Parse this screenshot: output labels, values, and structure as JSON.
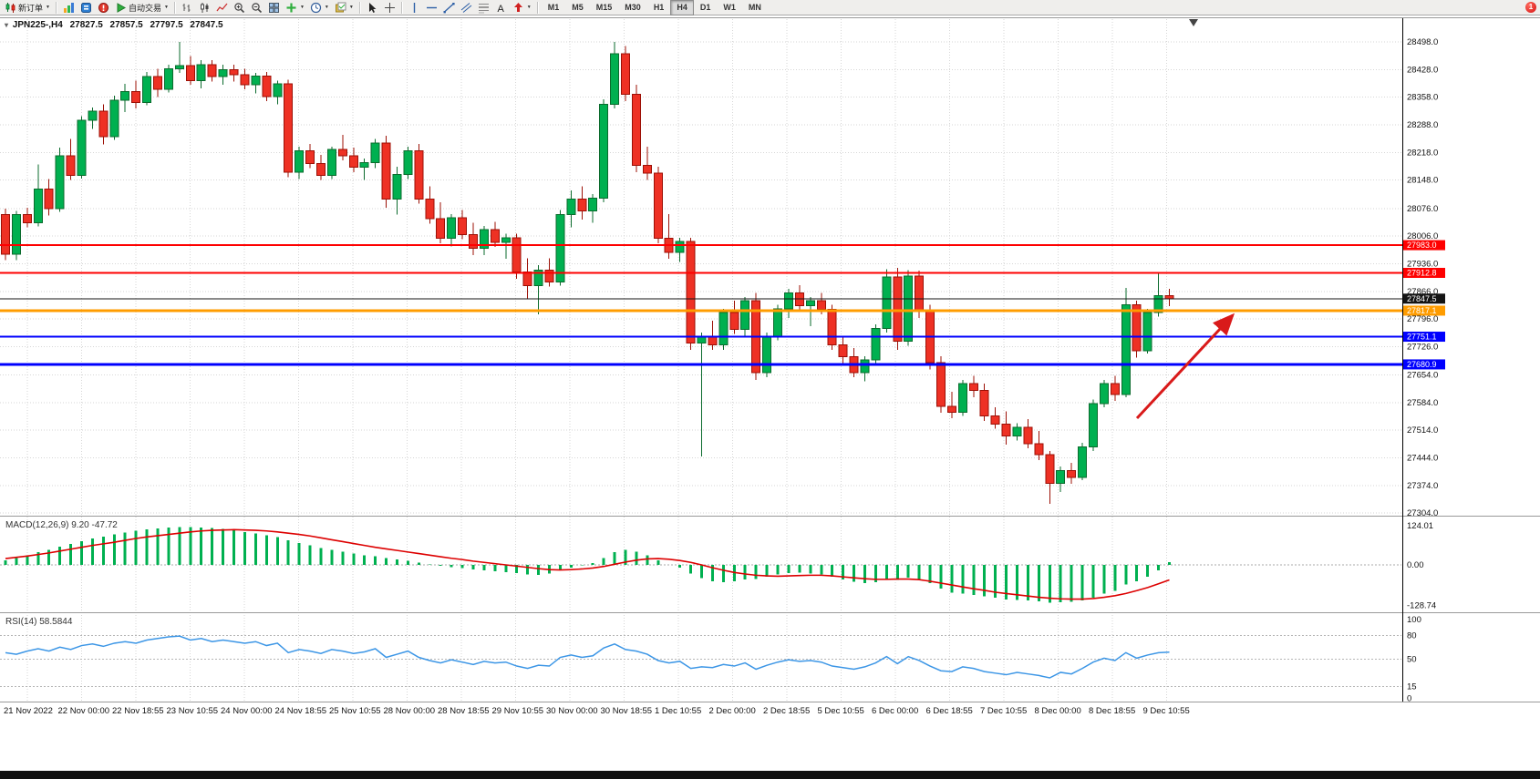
{
  "colors": {
    "up_fill": "#00b050",
    "up_stroke": "#0b6b2d",
    "down_fill": "#ee3124",
    "down_stroke": "#9c1006",
    "macd_hist": "#00b050",
    "macd_signal": "#dd0000",
    "rsi_line": "#3c96e6",
    "grid": "#d6d6d6",
    "axis_text": "#111111",
    "arrow": "#d91a1a"
  },
  "icons": {
    "one_click": "▾",
    "caret_down": "▼"
  },
  "toolbar": {
    "groups": [
      [
        {
          "name": "new-order-button",
          "icon": "candles",
          "label": "新订单",
          "caret": true
        }
      ],
      [
        {
          "name": "charts-button",
          "icon": "chart"
        },
        {
          "name": "market-watch-button",
          "icon": "bluebox"
        },
        {
          "name": "alerts-button",
          "icon": "redbox"
        },
        {
          "name": "auto-trading-button",
          "icon": "play",
          "label": "自动交易",
          "caret": true
        }
      ],
      [
        {
          "name": "bar-chart-button",
          "icon": "bars"
        },
        {
          "name": "candlestick-chart-button",
          "icon": "candles2"
        },
        {
          "name": "line-chart-button",
          "icon": "linechart"
        },
        {
          "name": "zoom-in-button",
          "icon": "zoomin"
        },
        {
          "name": "zoom-out-button",
          "icon": "zoomout"
        },
        {
          "name": "tile-windows-button",
          "icon": "tile"
        },
        {
          "name": "indicators-button",
          "icon": "plus",
          "caret": true
        },
        {
          "name": "periods-button",
          "icon": "clock",
          "caret": true
        },
        {
          "name": "templates-button",
          "icon": "template",
          "caret": true
        }
      ],
      [
        {
          "name": "cursor-button",
          "icon": "cursor"
        },
        {
          "name": "crosshair-button",
          "icon": "crosshair"
        }
      ],
      [
        {
          "name": "vertical-line-button",
          "icon": "vline"
        },
        {
          "name": "horizontal-line-button",
          "icon": "hline"
        },
        {
          "name": "trendline-button",
          "icon": "trend"
        },
        {
          "name": "equidistant-channel-button",
          "icon": "channel"
        },
        {
          "name": "fibonacci-retracement-button",
          "icon": "fibo"
        },
        {
          "name": "text-button",
          "icon": "textA"
        },
        {
          "name": "arrows-button",
          "icon": "arrows",
          "caret": true
        }
      ]
    ],
    "timeframes": [
      "M1",
      "M5",
      "M15",
      "M30",
      "H1",
      "H4",
      "D1",
      "W1",
      "MN"
    ],
    "active_timeframe": "H4",
    "badge_count": "1"
  },
  "chart_header": {
    "symbol": "JPN225-,H4",
    "open": "27827.5",
    "high": "27857.5",
    "low": "27797.5",
    "close": "27847.5"
  },
  "chart_data": {
    "type": "candlestick",
    "title": "JPN225-,H4",
    "price_axis": [
      "28498.0",
      "28428.0",
      "28358.0",
      "28288.0",
      "28218.0",
      "28148.0",
      "28076.0",
      "28006.0",
      "27936.0",
      "27866.0",
      "27796.0",
      "27726.0",
      "27654.0",
      "27584.0",
      "27514.0",
      "27444.0",
      "27374.0",
      "27304.0"
    ],
    "time_axis": [
      "21 Nov 2022",
      "22 Nov 00:00",
      "22 Nov 18:55",
      "23 Nov 10:55",
      "24 Nov 00:00",
      "24 Nov 18:55",
      "25 Nov 10:55",
      "28 Nov 00:00",
      "28 Nov 18:55",
      "29 Nov 10:55",
      "30 Nov 00:00",
      "30 Nov 18:55",
      "1 Dec 10:55",
      "2 Dec 00:00",
      "2 Dec 18:55",
      "5 Dec 10:55",
      "6 Dec 00:00",
      "6 Dec 18:55",
      "7 Dec 10:55",
      "8 Dec 00:00",
      "8 Dec 18:55",
      "9 Dec 10:55"
    ],
    "candles": [
      [
        28060,
        28075,
        27945,
        27960
      ],
      [
        27960,
        28070,
        27945,
        28060
      ],
      [
        28060,
        28078,
        28028,
        28040
      ],
      [
        28040,
        28188,
        28030,
        28125
      ],
      [
        28125,
        28150,
        28058,
        28075
      ],
      [
        28075,
        28230,
        28068,
        28210
      ],
      [
        28210,
        28252,
        28148,
        28160
      ],
      [
        28160,
        28310,
        28152,
        28300
      ],
      [
        28300,
        28332,
        28278,
        28322
      ],
      [
        28322,
        28340,
        28238,
        28258
      ],
      [
        28258,
        28362,
        28250,
        28350
      ],
      [
        28350,
        28392,
        28320,
        28372
      ],
      [
        28372,
        28400,
        28330,
        28345
      ],
      [
        28345,
        28422,
        28338,
        28410
      ],
      [
        28410,
        28430,
        28358,
        28378
      ],
      [
        28378,
        28440,
        28370,
        28430
      ],
      [
        28430,
        28498,
        28420,
        28438
      ],
      [
        28438,
        28462,
        28390,
        28400
      ],
      [
        28400,
        28452,
        28380,
        28440
      ],
      [
        28440,
        28452,
        28398,
        28410
      ],
      [
        28410,
        28440,
        28390,
        28428
      ],
      [
        28428,
        28440,
        28398,
        28415
      ],
      [
        28415,
        28430,
        28378,
        28390
      ],
      [
        28390,
        28420,
        28368,
        28412
      ],
      [
        28412,
        28422,
        28348,
        28360
      ],
      [
        28360,
        28400,
        28340,
        28392
      ],
      [
        28392,
        28402,
        28155,
        28168
      ],
      [
        28168,
        28232,
        28150,
        28222
      ],
      [
        28222,
        28240,
        28178,
        28190
      ],
      [
        28190,
        28212,
        28148,
        28160
      ],
      [
        28160,
        28232,
        28150,
        28226
      ],
      [
        28226,
        28262,
        28198,
        28210
      ],
      [
        28210,
        28230,
        28168,
        28180
      ],
      [
        28180,
        28202,
        28148,
        28192
      ],
      [
        28192,
        28252,
        28178,
        28242
      ],
      [
        28242,
        28260,
        28078,
        28100
      ],
      [
        28100,
        28182,
        28060,
        28162
      ],
      [
        28162,
        28232,
        28150,
        28222
      ],
      [
        28222,
        28240,
        28088,
        28100
      ],
      [
        28100,
        28132,
        28038,
        28050
      ],
      [
        28050,
        28092,
        27988,
        28000
      ],
      [
        28000,
        28062,
        27980,
        28052
      ],
      [
        28052,
        28072,
        27998,
        28010
      ],
      [
        28010,
        28040,
        27958,
        27975
      ],
      [
        27975,
        28032,
        27958,
        28022
      ],
      [
        28022,
        28042,
        27978,
        27990
      ],
      [
        27990,
        28012,
        27948,
        28002
      ],
      [
        28002,
        28012,
        27898,
        27915
      ],
      [
        27915,
        27950,
        27848,
        27880
      ],
      [
        27880,
        27932,
        27808,
        27920
      ],
      [
        27920,
        27950,
        27878,
        27890
      ],
      [
        27890,
        28072,
        27880,
        28060
      ],
      [
        28060,
        28122,
        28028,
        28100
      ],
      [
        28100,
        28132,
        28048,
        28070
      ],
      [
        28070,
        28112,
        28040,
        28102
      ],
      [
        28102,
        28352,
        28092,
        28340
      ],
      [
        28340,
        28498,
        28330,
        28468
      ],
      [
        28468,
        28488,
        28348,
        28365
      ],
      [
        28365,
        28390,
        28168,
        28185
      ],
      [
        28185,
        28232,
        28148,
        28165
      ],
      [
        28165,
        28182,
        27988,
        28000
      ],
      [
        28000,
        28062,
        27948,
        27965
      ],
      [
        27965,
        28002,
        27940,
        27992
      ],
      [
        27992,
        28002,
        27718,
        27735
      ],
      [
        27735,
        27762,
        27448,
        27752
      ],
      [
        27752,
        27792,
        27718,
        27730
      ],
      [
        27730,
        27822,
        27718,
        27812
      ],
      [
        27812,
        27842,
        27758,
        27770
      ],
      [
        27770,
        27852,
        27750,
        27842
      ],
      [
        27842,
        27862,
        27642,
        27660
      ],
      [
        27660,
        27762,
        27648,
        27752
      ],
      [
        27752,
        27832,
        27742,
        27822
      ],
      [
        27822,
        27872,
        27798,
        27862
      ],
      [
        27862,
        27882,
        27818,
        27830
      ],
      [
        27830,
        27852,
        27778,
        27842
      ],
      [
        27842,
        27862,
        27808,
        27820
      ],
      [
        27820,
        27832,
        27718,
        27730
      ],
      [
        27730,
        27752,
        27678,
        27700
      ],
      [
        27700,
        27722,
        27648,
        27660
      ],
      [
        27660,
        27702,
        27638,
        27692
      ],
      [
        27692,
        27782,
        27680,
        27772
      ],
      [
        27772,
        27922,
        27762,
        27902
      ],
      [
        27902,
        27925,
        27718,
        27740
      ],
      [
        27740,
        27920,
        27728,
        27905
      ],
      [
        27905,
        27918,
        27798,
        27815
      ],
      [
        27815,
        27832,
        27668,
        27685
      ],
      [
        27685,
        27702,
        27558,
        27575
      ],
      [
        27575,
        27612,
        27545,
        27560
      ],
      [
        27560,
        27642,
        27550,
        27632
      ],
      [
        27632,
        27652,
        27598,
        27615
      ],
      [
        27615,
        27632,
        27538,
        27550
      ],
      [
        27550,
        27572,
        27518,
        27530
      ],
      [
        27530,
        27562,
        27478,
        27500
      ],
      [
        27500,
        27532,
        27488,
        27522
      ],
      [
        27522,
        27542,
        27468,
        27480
      ],
      [
        27480,
        27512,
        27438,
        27452
      ],
      [
        27452,
        27462,
        27328,
        27380
      ],
      [
        27380,
        27422,
        27358,
        27412
      ],
      [
        27412,
        27432,
        27378,
        27395
      ],
      [
        27395,
        27482,
        27388,
        27472
      ],
      [
        27472,
        27592,
        27462,
        27582
      ],
      [
        27582,
        27642,
        27572,
        27632
      ],
      [
        27632,
        27652,
        27588,
        27605
      ],
      [
        27605,
        27875,
        27598,
        27832
      ],
      [
        27832,
        27842,
        27698,
        27715
      ],
      [
        27715,
        27822,
        27708,
        27812
      ],
      [
        27812,
        27915,
        27802,
        27855
      ],
      [
        27855,
        27872,
        27828,
        27847.5
      ]
    ],
    "hlines": [
      {
        "price": 27983.0,
        "label": "27983.0",
        "color": "#fe0000",
        "width": 2
      },
      {
        "price": 27912.8,
        "label": "27912.8",
        "color": "#fe0000",
        "width": 2
      },
      {
        "price": 27847.5,
        "label": "27847.5",
        "color": "#141414",
        "width": 1
      },
      {
        "price": 27817.1,
        "label": "27817.1",
        "color": "#ff9c00",
        "width": 3
      },
      {
        "price": 27751.1,
        "label": "27751.1",
        "color": "#0000fe",
        "width": 2
      },
      {
        "price": 27680.9,
        "label": "27680.9",
        "color": "#0000fe",
        "width": 3
      }
    ],
    "indicators": {
      "macd": {
        "label": "MACD(12,26,9) 9.20 -47.72",
        "axis": [
          "124.01",
          "0.00",
          "-128.74"
        ],
        "hist": [
          15,
          22,
          30,
          40,
          48,
          58,
          66,
          75,
          84,
          90,
          97,
          103,
          108,
          113,
          116,
          119,
          121,
          120,
          119,
          117,
          114,
          110,
          105,
          100,
          94,
          88,
          78,
          70,
          62,
          54,
          48,
          42,
          36,
          31,
          28,
          22,
          17,
          13,
          7,
          2,
          -3,
          -7,
          -10,
          -14,
          -18,
          -21,
          -23,
          -26,
          -30,
          -32,
          -28,
          -18,
          -8,
          -2,
          6,
          22,
          40,
          48,
          42,
          30,
          14,
          0,
          -8,
          -28,
          -42,
          -52,
          -55,
          -52,
          -46,
          -45,
          -38,
          -30,
          -26,
          -25,
          -27,
          -30,
          -38,
          -46,
          -54,
          -58,
          -55,
          -45,
          -48,
          -40,
          -45,
          -58,
          -75,
          -88,
          -92,
          -95,
          -100,
          -105,
          -110,
          -111,
          -113,
          -116,
          -120,
          -119,
          -118,
          -113,
          -104,
          -92,
          -82,
          -62,
          -52,
          -38,
          -18,
          9.2
        ],
        "signal": [
          20,
          24,
          28,
          33,
          38,
          44,
          50,
          56,
          62,
          67,
          72,
          78,
          84,
          89,
          93,
          97,
          101,
          105,
          108,
          110,
          111,
          112,
          111,
          110,
          108,
          105,
          101,
          97,
          92,
          86,
          80,
          74,
          68,
          62,
          56,
          51,
          46,
          41,
          36,
          31,
          26,
          21,
          17,
          12,
          8,
          4,
          0,
          -4,
          -8,
          -12,
          -15,
          -16,
          -15,
          -13,
          -10,
          -5,
          2,
          9,
          15,
          19,
          20,
          18,
          14,
          8,
          0,
          -9,
          -17,
          -24,
          -29,
          -33,
          -35,
          -36,
          -35,
          -34,
          -33,
          -33,
          -35,
          -38,
          -41,
          -44,
          -46,
          -46,
          -45,
          -45,
          -47,
          -52,
          -58,
          -64,
          -70,
          -76,
          -81,
          -87,
          -91,
          -95,
          -99,
          -103,
          -106,
          -108,
          -109,
          -109,
          -107,
          -103,
          -98,
          -91,
          -82,
          -72,
          -60,
          -47.7
        ]
      },
      "rsi": {
        "label": "RSI(14) 58.5844",
        "axis": [
          "100",
          "80",
          "50",
          "15",
          "0"
        ],
        "levels": [
          80,
          50,
          15
        ],
        "values": [
          58,
          56,
          60,
          63,
          60,
          65,
          62,
          67,
          69,
          66,
          70,
          72,
          70,
          74,
          76,
          78,
          79,
          74,
          76,
          72,
          74,
          72,
          70,
          72,
          67,
          70,
          58,
          62,
          60,
          57,
          62,
          60,
          57,
          59,
          63,
          52,
          56,
          60,
          52,
          48,
          45,
          49,
          46,
          43,
          47,
          45,
          46,
          41,
          38,
          42,
          41,
          52,
          55,
          52,
          54,
          64,
          69,
          62,
          60,
          56,
          48,
          45,
          47,
          38,
          40,
          39,
          43,
          41,
          45,
          37,
          42,
          46,
          49,
          47,
          48,
          46,
          41,
          39,
          37,
          40,
          45,
          53,
          44,
          53,
          48,
          41,
          35,
          34,
          40,
          38,
          34,
          32,
          30,
          33,
          31,
          29,
          26,
          33,
          31,
          38,
          46,
          51,
          48,
          58,
          51,
          55,
          58,
          58.6
        ]
      }
    }
  },
  "annotations": {
    "arrow": {
      "from": [
        1247,
        459
      ],
      "to": [
        1352,
        346
      ]
    }
  }
}
